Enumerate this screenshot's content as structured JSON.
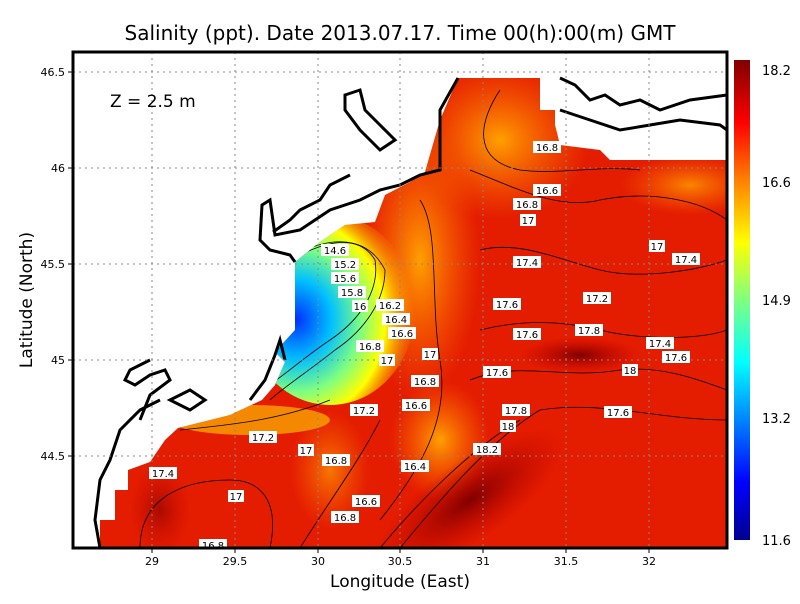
{
  "title": "Salinity (ppt). Date 2013.07.17. Time 00(h):00(m) GMT",
  "depth_label": "Z = 2.5 m",
  "xlabel": "Longitude (East)",
  "ylabel": "Latitude (North)",
  "x_ticks": [
    "29",
    "29.5",
    "30",
    "30.5",
    "31",
    "31.5",
    "32"
  ],
  "y_ticks": [
    "46.5",
    "46",
    "45.5",
    "45",
    "44.5"
  ],
  "colorbar": {
    "ticks": [
      "18.2",
      "16.6",
      "14.9",
      "13.2",
      "11.6"
    ],
    "min": 11.6,
    "max": 18.2,
    "colormap": "jet"
  },
  "chart_data": {
    "type": "heatmap",
    "title": "Salinity (ppt). Date 2013.07.17. Time 00(h):00(m) GMT",
    "xlabel": "Longitude (East)",
    "ylabel": "Latitude (North)",
    "xlim": [
      28.52,
      32.47
    ],
    "ylim": [
      44.05,
      46.6
    ],
    "grid": true,
    "contour_labels": [
      "16.8",
      "16.6",
      "16.8",
      "17",
      "17",
      "17.4",
      "17.4",
      "17.6",
      "17.2",
      "17.6",
      "17.8",
      "17.4",
      "17.6",
      "18",
      "17.6",
      "17",
      "17",
      "16.8",
      "16.6",
      "16.4",
      "16.2",
      "16",
      "15.8",
      "15.6",
      "15.2",
      "14.6",
      "16.8",
      "16.6",
      "17.2",
      "17.8",
      "18",
      "17.6",
      "17.2",
      "17",
      "16.8",
      "16.4",
      "18.2",
      "17.4",
      "17",
      "16.6",
      "16.8",
      "16.8"
    ]
  },
  "colors": {
    "low": "#00008f",
    "mid": "#ffff00",
    "high": "#800000",
    "sea_base": "#e82000",
    "land": "#ffffff"
  }
}
